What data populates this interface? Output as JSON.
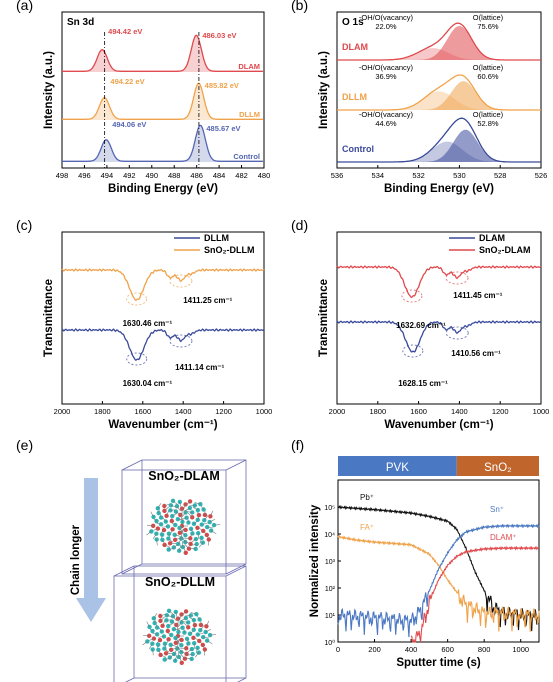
{
  "chart_data": [
    {
      "panel": "(a)",
      "type": "line",
      "title": "Sn 3d",
      "xlabel": "Binding Energy (eV)",
      "ylabel": "Intensity (a.u.)",
      "xlim": [
        498,
        480
      ],
      "xticks": [
        "498",
        "496",
        "494",
        "492",
        "490",
        "488",
        "486",
        "484",
        "482",
        "480"
      ],
      "series": [
        {
          "name": "DLAM",
          "color": "#e0494d",
          "peaks": [
            {
              "x": 494.42,
              "label": "494.42 eV"
            },
            {
              "x": 486.03,
              "label": "486.03 eV"
            }
          ]
        },
        {
          "name": "DLLM",
          "color": "#f0a24a",
          "peaks": [
            {
              "x": 494.22,
              "label": "494.22 eV"
            },
            {
              "x": 485.82,
              "label": "485.82 eV"
            }
          ]
        },
        {
          "name": "Control",
          "color": "#5566b5",
          "peaks": [
            {
              "x": 494.06,
              "label": "494.06 eV"
            },
            {
              "x": 485.67,
              "label": "485.67 eV"
            }
          ]
        }
      ]
    },
    {
      "panel": "(b)",
      "type": "area",
      "title": "O 1s",
      "xlabel": "Binding Energy (eV)",
      "ylabel": "Intensity (a.u.)",
      "xlim": [
        536,
        526
      ],
      "xticks": [
        "536",
        "534",
        "532",
        "530",
        "528",
        "526"
      ],
      "series": [
        {
          "name": "DLAM",
          "color": "#e0494d",
          "components": [
            {
              "name": "-OH/O(vacancy)",
              "value": "22.0%",
              "center": 531.3
            },
            {
              "name": "O(lattice)",
              "value": "75.6%",
              "center": 530.0
            }
          ]
        },
        {
          "name": "DLLM",
          "color": "#f0a24a",
          "components": [
            {
              "name": "-OH/O(vacancy)",
              "value": "36.9%",
              "center": 531.0
            },
            {
              "name": "O(lattice)",
              "value": "60.6%",
              "center": 529.8
            }
          ]
        },
        {
          "name": "Control",
          "color": "#3a4a9a",
          "components": [
            {
              "name": "-OH/O(vacancy)",
              "value": "44.6%",
              "center": 530.6
            },
            {
              "name": "O(lattice)",
              "value": "52.8%",
              "center": 529.7
            }
          ]
        }
      ]
    },
    {
      "panel": "(c)",
      "type": "line",
      "xlabel": "Wavenumber (cm⁻¹)",
      "ylabel": "Transmittance",
      "xlim": [
        2000,
        1000
      ],
      "xticks": [
        "2000",
        "1800",
        "1600",
        "1400",
        "1200",
        "1000"
      ],
      "series": [
        {
          "name": "DLLM",
          "color": "#3a4a9a",
          "annotations": [
            "1630.04 cm⁻¹",
            "1411.14 cm⁻¹"
          ],
          "dips": [
            1630.04,
            1411.14
          ]
        },
        {
          "name": "SnO₂-DLLM",
          "color": "#f0a24a",
          "annotations": [
            "1630.46 cm⁻¹",
            "1411.25 cm⁻¹"
          ],
          "dips": [
            1630.46,
            1411.25
          ]
        }
      ]
    },
    {
      "panel": "(d)",
      "type": "line",
      "xlabel": "Wavenumber (cm⁻¹)",
      "ylabel": "Transmittance",
      "xlim": [
        2000,
        1000
      ],
      "xticks": [
        "2000",
        "1800",
        "1600",
        "1400",
        "1200",
        "1000"
      ],
      "series": [
        {
          "name": "DLAM",
          "color": "#3a4a9a",
          "annotations": [
            "1628.15 cm⁻¹",
            "1410.56 cm⁻¹"
          ],
          "dips": [
            1628.15,
            1410.56
          ]
        },
        {
          "name": "SnO₂-DLAM",
          "color": "#e0494d",
          "annotations": [
            "1632.69 cm⁻¹",
            "1411.45 cm⁻¹"
          ],
          "dips": [
            1632.69,
            1411.45
          ]
        }
      ]
    },
    {
      "panel": "(f)",
      "type": "line",
      "xlabel": "Sputter time (s)",
      "ylabel": "Normalized intensity",
      "xlim": [
        0,
        1100
      ],
      "ylim": [
        1,
        1000000
      ],
      "yscale": "log",
      "xticks": [
        "0",
        "200",
        "400",
        "600",
        "800",
        "1000"
      ],
      "yticks": [
        "10⁰",
        "10¹",
        "10²",
        "10³",
        "10⁴",
        "10⁵"
      ],
      "regions": [
        {
          "name": "PVK",
          "from": 0,
          "to": 650,
          "color": "#4a78c2"
        },
        {
          "name": "SnO₂",
          "from": 650,
          "to": 1100,
          "color": "#c0652c"
        }
      ],
      "series": [
        {
          "name": "Pb⁺",
          "color": "#111111",
          "x": [
            0,
            200,
            400,
            500,
            600,
            650,
            700,
            750,
            800,
            850,
            900,
            1000,
            1100
          ],
          "y": [
            100000,
            80000,
            60000,
            45000,
            30000,
            15000,
            3000,
            400,
            80,
            20,
            12,
            10,
            9
          ]
        },
        {
          "name": "FA⁺",
          "color": "#f0a24a",
          "x": [
            0,
            100,
            200,
            300,
            400,
            500,
            550,
            600,
            650,
            700,
            800,
            900,
            1000,
            1100
          ],
          "y": [
            8000,
            6000,
            5000,
            4500,
            4000,
            1800,
            700,
            200,
            70,
            25,
            12,
            12,
            10,
            10
          ]
        },
        {
          "name": "Sn⁺",
          "color": "#4a78c2",
          "x": [
            0,
            200,
            400,
            450,
            500,
            550,
            600,
            650,
            700,
            800,
            900,
            1000,
            1100
          ],
          "y": [
            10,
            8,
            6,
            15,
            80,
            500,
            2000,
            6000,
            12000,
            18000,
            20000,
            20000,
            20000
          ]
        },
        {
          "name": "DLAM⁺",
          "color": "#e0494d",
          "x": [
            400,
            450,
            500,
            550,
            600,
            650,
            700,
            800,
            900,
            1000,
            1100
          ],
          "y": [
            1,
            2,
            30,
            200,
            700,
            1500,
            2200,
            2800,
            3000,
            3000,
            3000
          ]
        }
      ]
    }
  ],
  "panel_e": {
    "label": "(e)",
    "arrow_text": "Chain longer",
    "box_top_title": "SnO₂-DLAM",
    "box_bottom_title": "SnO₂-DLLM"
  }
}
